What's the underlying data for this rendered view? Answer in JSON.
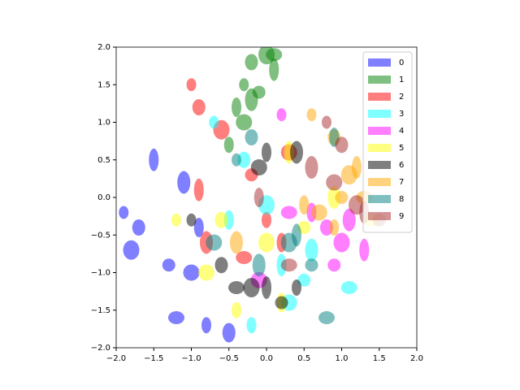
{
  "chart_data": {
    "type": "scatter",
    "xlim": [
      -2,
      2
    ],
    "ylim": [
      -2,
      2
    ],
    "xticks": [
      {
        "value": -2,
        "label": "−2.0"
      },
      {
        "value": -1.5,
        "label": "−1.5"
      },
      {
        "value": -1,
        "label": "−1.0"
      },
      {
        "value": -0.5,
        "label": "−0.5"
      },
      {
        "value": 0,
        "label": "0.0"
      },
      0.5,
      {
        "value": 1,
        "label": "1.0"
      },
      1.5,
      {
        "value": 2,
        "label": "2.0"
      }
    ],
    "yticks": [
      {
        "value": -2,
        "label": "−2.0"
      },
      {
        "value": -1.5,
        "label": "−1.5"
      },
      {
        "value": -1,
        "label": "−1.0"
      },
      {
        "value": -0.5,
        "label": "−0.5"
      },
      {
        "value": 0,
        "label": "0.0"
      },
      0.5,
      {
        "value": 1,
        "label": "1.0"
      },
      1.5,
      {
        "value": 2,
        "label": "2.0"
      }
    ],
    "legend": "upper right",
    "series": [
      {
        "name": "0",
        "color": "#0000ff",
        "x": [
          -1.9,
          -1.7,
          -1.8,
          -1.5,
          -1.3,
          -1.0,
          -0.9,
          -1.1,
          -1.2,
          -0.8,
          -0.5
        ],
        "y": [
          -0.2,
          -0.4,
          -0.7,
          0.5,
          -0.9,
          -1.0,
          -0.4,
          0.2,
          -1.6,
          -1.7,
          -1.8
        ]
      },
      {
        "name": "1",
        "color": "#008000",
        "x": [
          -0.3,
          -0.2,
          0.0,
          0.1,
          -0.1,
          -0.3,
          -0.4,
          -0.2,
          0.1,
          -0.5
        ],
        "y": [
          1.5,
          1.8,
          1.9,
          1.7,
          1.4,
          1.0,
          1.2,
          1.3,
          1.9,
          0.7
        ]
      },
      {
        "name": "2",
        "color": "#ff0000",
        "x": [
          -1.0,
          -0.9,
          -0.6,
          -0.9,
          -0.2,
          0.3,
          0.2,
          -0.8,
          -0.3,
          0.0
        ],
        "y": [
          1.5,
          1.2,
          0.9,
          0.1,
          0.3,
          0.6,
          -0.6,
          -0.6,
          -0.8,
          -0.3
        ]
      },
      {
        "name": "3",
        "color": "#00ffff",
        "x": [
          -0.7,
          -0.3,
          0.0,
          0.2,
          0.5,
          0.3,
          -0.5,
          0.6,
          1.1,
          -0.2
        ],
        "y": [
          1.0,
          0.5,
          -0.1,
          -0.9,
          -1.1,
          -1.4,
          -0.3,
          -0.7,
          -1.2,
          -1.7
        ]
      },
      {
        "name": "4",
        "color": "#ff00ff",
        "x": [
          0.2,
          0.8,
          1.0,
          1.3,
          0.9,
          -0.1,
          0.6,
          1.1,
          0.3
        ],
        "y": [
          1.1,
          -0.4,
          -0.6,
          -0.7,
          -0.9,
          -1.1,
          -0.2,
          -0.3,
          -0.2
        ]
      },
      {
        "name": "5",
        "color": "#ffff00",
        "x": [
          -1.2,
          -0.6,
          0.0,
          0.3,
          0.5,
          -0.8,
          0.2,
          0.9,
          1.4,
          -0.4
        ],
        "y": [
          -0.3,
          -0.3,
          -0.6,
          0.6,
          -0.4,
          -1.0,
          -1.4,
          0.0,
          -0.3,
          -1.5
        ]
      },
      {
        "name": "6",
        "color": "#000000",
        "x": [
          -1.0,
          -0.6,
          -0.2,
          0.0,
          0.2,
          -0.1,
          0.0,
          0.4,
          -0.4,
          0.4
        ],
        "y": [
          -0.3,
          -0.9,
          -1.2,
          -1.2,
          -1.4,
          0.4,
          0.6,
          0.6,
          -1.2,
          -1.2
        ]
      },
      {
        "name": "7",
        "color": "#ffa500",
        "x": [
          0.6,
          0.9,
          1.1,
          1.2,
          1.0,
          0.7,
          0.5,
          -0.4,
          1.3,
          0.9
        ],
        "y": [
          1.1,
          0.8,
          0.3,
          0.4,
          0.0,
          -0.2,
          -0.1,
          -0.6,
          0.0,
          -0.4
        ]
      },
      {
        "name": "8",
        "color": "#008080",
        "x": [
          -0.4,
          -0.2,
          0.3,
          0.4,
          0.6,
          -0.7,
          0.9,
          -0.1,
          0.8
        ],
        "y": [
          0.5,
          0.8,
          -0.6,
          -0.5,
          -0.9,
          -0.6,
          0.8,
          -0.9,
          -1.6
        ]
      },
      {
        "name": "9",
        "color": "#a52a2a",
        "x": [
          0.8,
          1.0,
          1.2,
          1.3,
          1.5,
          0.9,
          -0.1,
          0.6,
          0.3
        ],
        "y": [
          1.0,
          0.7,
          -0.1,
          -0.2,
          -0.3,
          0.2,
          0.0,
          0.4,
          -0.9
        ]
      }
    ]
  }
}
